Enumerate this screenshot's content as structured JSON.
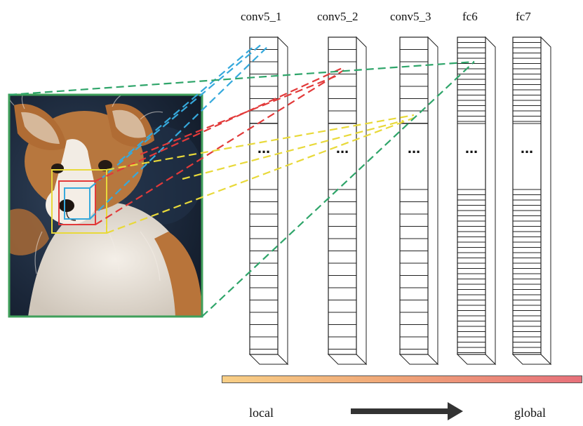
{
  "columns": [
    {
      "label": "conv5_1"
    },
    {
      "label": "conv5_2"
    },
    {
      "label": "conv5_3"
    },
    {
      "label": "fc6"
    },
    {
      "label": "fc7"
    }
  ],
  "ellipsis": "...",
  "bottom": {
    "left_label": "local",
    "right_label": "global"
  },
  "colors": {
    "border_green": "#3f9f5a",
    "blue": "#36a9dc",
    "red": "#e23a3a",
    "yellow": "#e8d93a",
    "green": "#2fa56a",
    "gradient_start": "#f8cf86",
    "gradient_end": "#e7707a",
    "arrow": "#333333"
  }
}
